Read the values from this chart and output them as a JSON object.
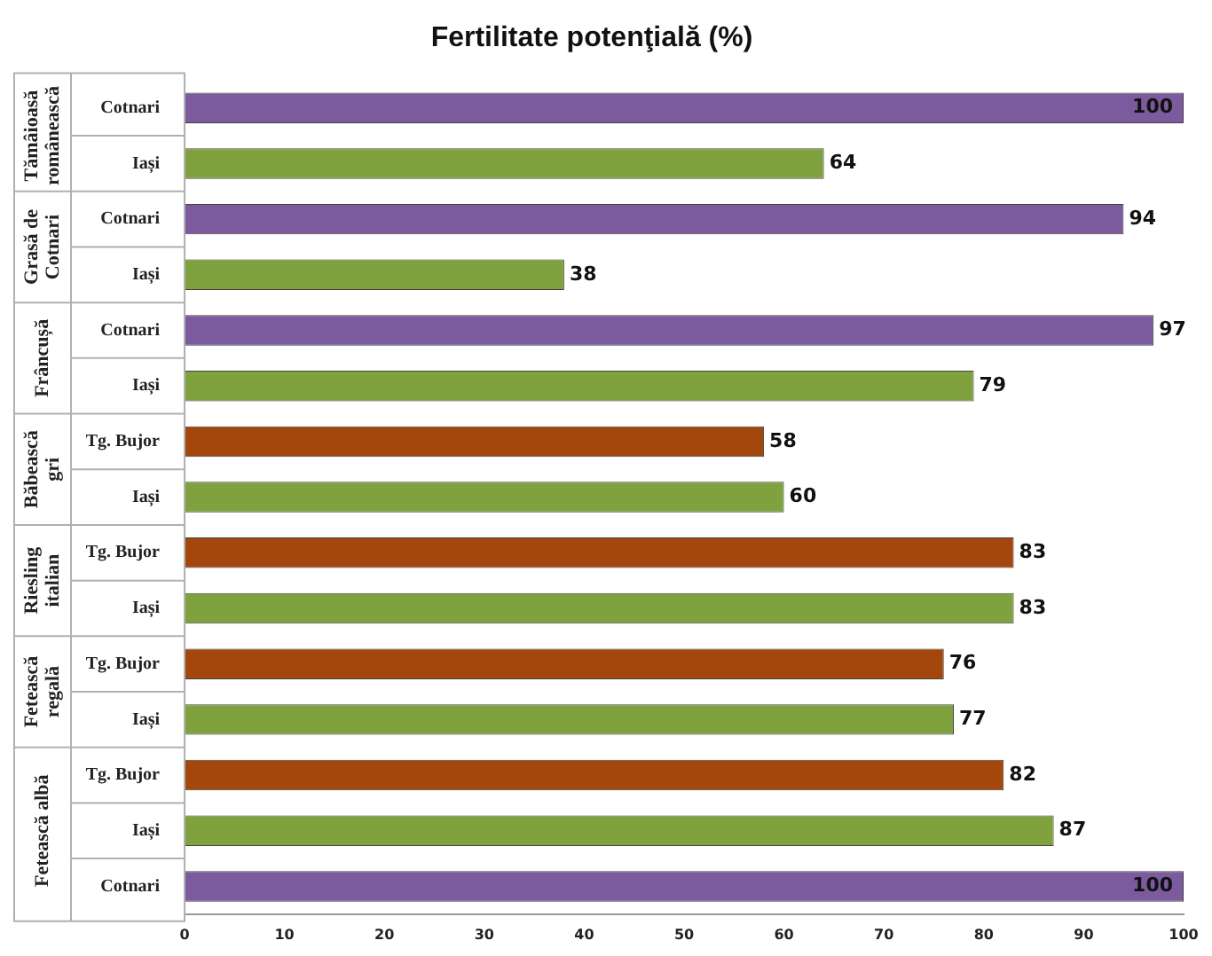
{
  "chart_data": {
    "type": "bar",
    "orientation": "horizontal",
    "title": "Fertilitate potenţială (%)",
    "categories": [
      "Cotnari",
      "Iași",
      "Cotnari",
      "Iași",
      "Cotnari",
      "Iași",
      "Tg. Bujor",
      "Iași",
      "Tg. Bujor",
      "Iași",
      "Tg. Bujor",
      "Iași",
      "Tg. Bujor",
      "Iași",
      "Cotnari"
    ],
    "values": [
      100,
      64,
      94,
      38,
      97,
      79,
      58,
      60,
      83,
      83,
      76,
      77,
      82,
      87,
      100
    ],
    "colors": [
      "#7b5a9e",
      "#7fa23e",
      "#7b5a9e",
      "#7fa23e",
      "#7b5a9e",
      "#7fa23e",
      "#a3470d",
      "#7fa23e",
      "#a3470d",
      "#7fa23e",
      "#a3470d",
      "#7fa23e",
      "#a3470d",
      "#7fa23e",
      "#7b5a9e"
    ],
    "annotations": [
      "Tămâioasă românească",
      "Grasă de Cotnari",
      "Frâncușă",
      "Băbească gri",
      "Riesling italian",
      "Fetească regală",
      "Fetească albă"
    ],
    "xlim": [
      0,
      100
    ],
    "xticks": [
      0,
      10,
      20,
      30,
      40,
      50,
      60,
      70,
      80,
      90,
      100
    ],
    "data_labels": true,
    "grid": false,
    "legend": false
  }
}
